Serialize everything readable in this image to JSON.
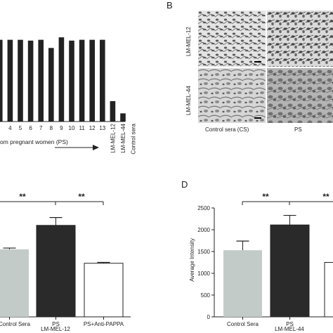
{
  "panels": {
    "A": {
      "letter": ""
    },
    "B": {
      "letter": "B"
    },
    "C": {
      "letter": ""
    },
    "D": {
      "letter": "D"
    }
  },
  "chart_data": [
    {
      "id": "A",
      "type": "bar",
      "categories": [
        "",
        "4",
        "5",
        "6",
        "7",
        "8",
        "9",
        "10",
        "11",
        "12",
        "13",
        "LM-MEL-12",
        "LM-MEL-44",
        "Control sera"
      ],
      "values": [
        100,
        100,
        100,
        99,
        100,
        90,
        103,
        99,
        100,
        100,
        100,
        25,
        10,
        0
      ],
      "ylim": [
        0,
        110
      ],
      "xlabel": "om pregnant women (PS)",
      "colors": {
        "bar": "#222222"
      }
    },
    {
      "id": "C",
      "type": "bar",
      "categories": [
        "Control Sera",
        "PS",
        "PS+Anti-PAPPA"
      ],
      "values": [
        1550,
        2100,
        1230
      ],
      "errors": [
        30,
        180,
        20
      ],
      "ylim": [
        0,
        2600
      ],
      "group_label": "LM-MEL-12",
      "significance": [
        "**",
        "**"
      ],
      "colors": {
        "bars": [
          "#c3cbc8",
          "#2a2a2a",
          "#ffffff"
        ]
      }
    },
    {
      "id": "D",
      "type": "bar",
      "categories": [
        "Control Sera",
        "PS",
        ""
      ],
      "values": [
        1530,
        2110,
        1250
      ],
      "errors": [
        210,
        220,
        0
      ],
      "ylim": [
        0,
        2500
      ],
      "yticks": [
        "0",
        "500",
        "1000",
        "1500",
        "2000",
        "2500"
      ],
      "ylabel": "Average Intensity",
      "group_label": "LM-MEL-44",
      "significance": [
        "**",
        "**"
      ],
      "colors": {
        "bars": [
          "#c3cbc8",
          "#2a2a2a",
          "#ffffff"
        ]
      }
    }
  ],
  "micrographs": {
    "rows": [
      "LM-MEL-12",
      "LM-MEL-44"
    ],
    "columns": [
      "Control sera (CS)",
      "PS"
    ]
  }
}
